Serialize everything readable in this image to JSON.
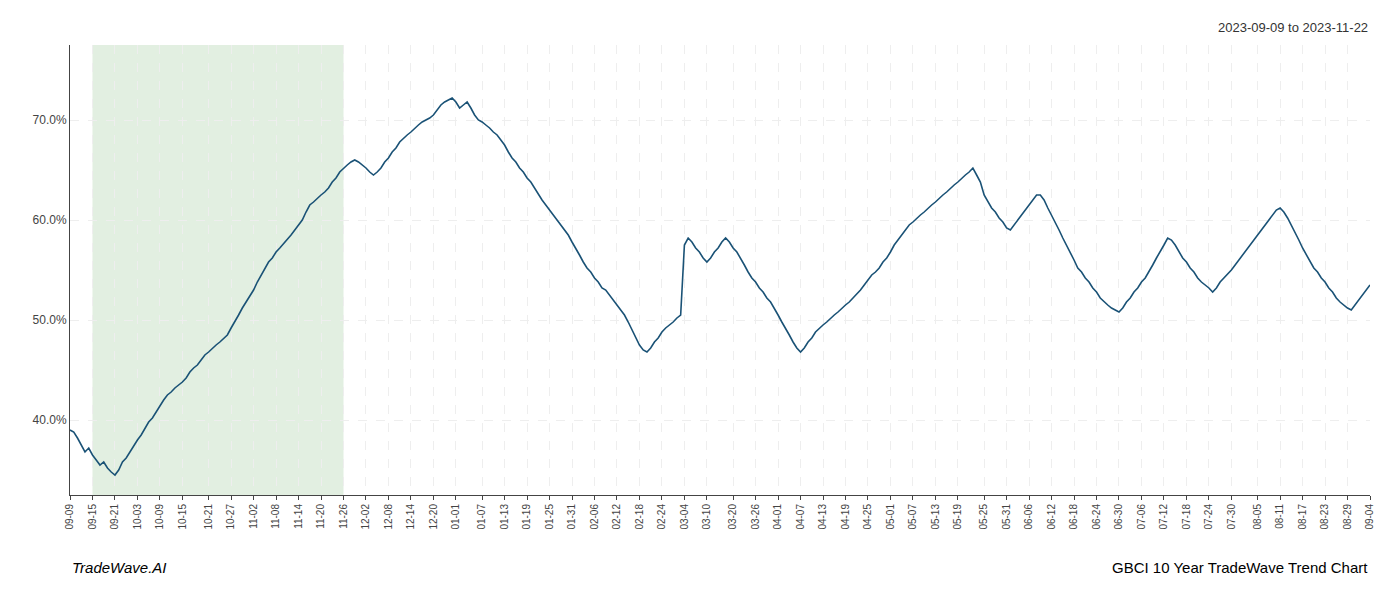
{
  "chart_data": {
    "type": "line",
    "annotations": [
      "2023-09-09 to 2023-11-22",
      "TradeWave.AI",
      "GBCI 10 Year TradeWave Trend Chart"
    ],
    "color": "#1a5276",
    "grid": true,
    "shade": {
      "start": "09-15",
      "end": "11-26",
      "color": "#d5e8d4"
    },
    "ylim": [
      0.325,
      0.775
    ],
    "yticks": [
      {
        "value": 0.4,
        "label": "40.0%"
      },
      {
        "value": 0.5,
        "label": "50.0%"
      },
      {
        "value": 0.6,
        "label": "60.0%"
      },
      {
        "value": 0.7,
        "label": "70.0%"
      }
    ],
    "categories": [
      "09-09",
      null,
      null,
      null,
      null,
      null,
      "09-15",
      null,
      null,
      null,
      null,
      null,
      "09-21",
      null,
      null,
      null,
      null,
      null,
      "10-03",
      null,
      null,
      null,
      null,
      null,
      "10-09",
      null,
      null,
      null,
      null,
      null,
      "10-15",
      null,
      null,
      null,
      null,
      null,
      null,
      "10-21",
      null,
      null,
      null,
      null,
      null,
      "10-27",
      null,
      null,
      null,
      null,
      null,
      "11-02",
      null,
      null,
      null,
      null,
      null,
      "11-08",
      null,
      null,
      null,
      null,
      null,
      "11-14",
      null,
      null,
      null,
      null,
      null,
      "11-20",
      null,
      null,
      null,
      null,
      null,
      "11-26",
      null,
      null,
      null,
      null,
      null,
      "12-02",
      null,
      null,
      null,
      null,
      null,
      "12-08",
      null,
      null,
      null,
      null,
      null,
      "12-14",
      null,
      null,
      null,
      null,
      null,
      "12-20",
      null,
      null,
      null,
      null,
      null,
      "01-01",
      null,
      null,
      null,
      null,
      null,
      null,
      "01-07",
      null,
      null,
      null,
      null,
      null,
      "01-13",
      null,
      null,
      null,
      null,
      null,
      "01-19",
      null,
      null,
      null,
      null,
      null,
      "01-25",
      null,
      null,
      null,
      null,
      null,
      "01-31",
      null,
      null,
      null,
      null,
      null,
      "02-06",
      null,
      null,
      null,
      null,
      null,
      "02-12",
      null,
      null,
      null,
      null,
      null,
      "02-18",
      null,
      null,
      null,
      null,
      null,
      "02-24",
      null,
      null,
      null,
      null,
      null,
      "03-04",
      null,
      null,
      null,
      null,
      null,
      "03-10",
      null,
      null,
      null,
      null,
      null,
      null,
      "03-20",
      null,
      null,
      null,
      null,
      null,
      "03-26",
      null,
      null,
      null,
      null,
      null,
      "04-01",
      null,
      null,
      null,
      null,
      null,
      "04-07",
      null,
      null,
      null,
      null,
      null,
      "04-13",
      null,
      null,
      null,
      null,
      null,
      "04-19",
      null,
      null,
      null,
      null,
      null,
      "04-25",
      null,
      null,
      null,
      null,
      null,
      "05-01",
      null,
      null,
      null,
      null,
      null,
      "05-07",
      null,
      null,
      null,
      null,
      null,
      "05-13",
      null,
      null,
      null,
      null,
      null,
      "05-19",
      null,
      null,
      null,
      null,
      null,
      null,
      "05-25",
      null,
      null,
      null,
      null,
      null,
      "05-31",
      null,
      null,
      null,
      null,
      null,
      "06-06",
      null,
      null,
      null,
      null,
      null,
      "06-12",
      null,
      null,
      null,
      null,
      null,
      "06-18",
      null,
      null,
      null,
      null,
      null,
      "06-24",
      null,
      null,
      null,
      null,
      null,
      "06-30",
      null,
      null,
      null,
      null,
      null,
      "07-06",
      null,
      null,
      null,
      null,
      null,
      "07-12",
      null,
      null,
      null,
      null,
      null,
      "07-18",
      null,
      null,
      null,
      null,
      null,
      "07-24",
      null,
      null,
      null,
      null,
      null,
      "07-30",
      null,
      null,
      null,
      null,
      null,
      null,
      "08-05",
      null,
      null,
      null,
      null,
      null,
      "08-11",
      null,
      null,
      null,
      null,
      null,
      "08-17",
      null,
      null,
      null,
      null,
      null,
      "08-23",
      null,
      null,
      null,
      null,
      null,
      "08-29",
      null,
      null,
      null,
      null,
      null,
      "09-04"
    ],
    "values": [
      0.39,
      0.388,
      0.382,
      0.375,
      0.368,
      0.372,
      0.365,
      0.36,
      0.355,
      0.358,
      0.352,
      0.348,
      0.345,
      0.35,
      0.358,
      0.362,
      0.368,
      0.375,
      0.38,
      0.385,
      0.392,
      0.398,
      0.402,
      0.408,
      0.415,
      0.42,
      0.425,
      0.428,
      0.432,
      0.435,
      0.438,
      0.442,
      0.448,
      0.452,
      0.455,
      0.46,
      0.465,
      0.468,
      0.472,
      0.475,
      0.478,
      0.482,
      0.485,
      0.492,
      0.498,
      0.505,
      0.512,
      0.518,
      0.525,
      0.53,
      0.538,
      0.545,
      0.552,
      0.558,
      0.562,
      0.568,
      0.572,
      0.576,
      0.58,
      0.585,
      0.59,
      0.595,
      0.6,
      0.608,
      0.615,
      0.618,
      0.622,
      0.625,
      0.628,
      0.632,
      0.638,
      0.642,
      0.648,
      0.652,
      0.655,
      0.658,
      0.66,
      0.658,
      0.655,
      0.652,
      0.648,
      0.645,
      0.648,
      0.652,
      0.658,
      0.662,
      0.668,
      0.672,
      0.678,
      0.682,
      0.685,
      0.688,
      0.692,
      0.695,
      0.698,
      0.7,
      0.702,
      0.705,
      0.71,
      0.715,
      0.718,
      0.72,
      0.722,
      0.718,
      0.712,
      0.715,
      0.718,
      0.712,
      0.705,
      0.7,
      0.698,
      0.695,
      0.692,
      0.688,
      0.685,
      0.68,
      0.675,
      0.668,
      0.662,
      0.658,
      0.652,
      0.648,
      0.642,
      0.638,
      0.632,
      0.625,
      0.62,
      0.615,
      0.61,
      0.605,
      0.6,
      0.595,
      0.59,
      0.585,
      0.578,
      0.572,
      0.565,
      0.558,
      0.552,
      0.548,
      0.542,
      0.538,
      0.532,
      0.53,
      0.525,
      0.52,
      0.515,
      0.51,
      0.505,
      0.498,
      0.49,
      0.482,
      0.475,
      0.47,
      0.468,
      0.472,
      0.478,
      0.482,
      0.488,
      0.492,
      0.495,
      0.498,
      0.502,
      0.505,
      0.575,
      0.582,
      0.578,
      0.572,
      0.568,
      0.562,
      0.558,
      0.562,
      0.568,
      0.572,
      0.578,
      0.582,
      0.578,
      0.572,
      0.568,
      0.562,
      0.555,
      0.548,
      0.542,
      0.538,
      0.532,
      0.528,
      0.522,
      0.518,
      0.512,
      0.505,
      0.498,
      0.492,
      0.485,
      0.478,
      0.472,
      0.468,
      0.472,
      0.478,
      0.482,
      0.488,
      0.492,
      0.495,
      0.498,
      0.502,
      0.505,
      0.508,
      0.512,
      0.515,
      0.518,
      0.522,
      0.525,
      0.53,
      0.535,
      0.54,
      0.545,
      0.548,
      0.552,
      0.558,
      0.562,
      0.568,
      0.575,
      0.58,
      0.585,
      0.59,
      0.595,
      0.598,
      0.602,
      0.605,
      0.608,
      0.612,
      0.615,
      0.618,
      0.622,
      0.625,
      0.628,
      0.632,
      0.635,
      0.638,
      0.642,
      0.645,
      0.648,
      0.652,
      0.645,
      0.638,
      0.625,
      0.618,
      0.612,
      0.608,
      0.602,
      0.598,
      0.592,
      0.59,
      0.595,
      0.6,
      0.605,
      0.61,
      0.615,
      0.62,
      0.625,
      0.625,
      0.62,
      0.612,
      0.605,
      0.598,
      0.59,
      0.582,
      0.575,
      0.568,
      0.56,
      0.552,
      0.548,
      0.542,
      0.538,
      0.532,
      0.528,
      0.522,
      0.518,
      0.515,
      0.512,
      0.51,
      0.508,
      0.512,
      0.518,
      0.522,
      0.528,
      0.532,
      0.538,
      0.542,
      0.548,
      0.555,
      0.562,
      0.568,
      0.575,
      0.582,
      0.58,
      0.575,
      0.568,
      0.562,
      0.558,
      0.552,
      0.548,
      0.542,
      0.538,
      0.535,
      0.532,
      0.528,
      0.532,
      0.538,
      0.542,
      0.545,
      0.55,
      0.555,
      0.56,
      0.565,
      0.57,
      0.575,
      0.58,
      0.585,
      0.59,
      0.595,
      0.6,
      0.605,
      0.61,
      0.612,
      0.608,
      0.602,
      0.595,
      0.588,
      0.58,
      0.572,
      0.565,
      0.558,
      0.552,
      0.548,
      0.542,
      0.538,
      0.532,
      0.528,
      0.522,
      0.518,
      0.515,
      0.512,
      0.51,
      0.515,
      0.52,
      0.525,
      0.53,
      0.535
    ]
  }
}
